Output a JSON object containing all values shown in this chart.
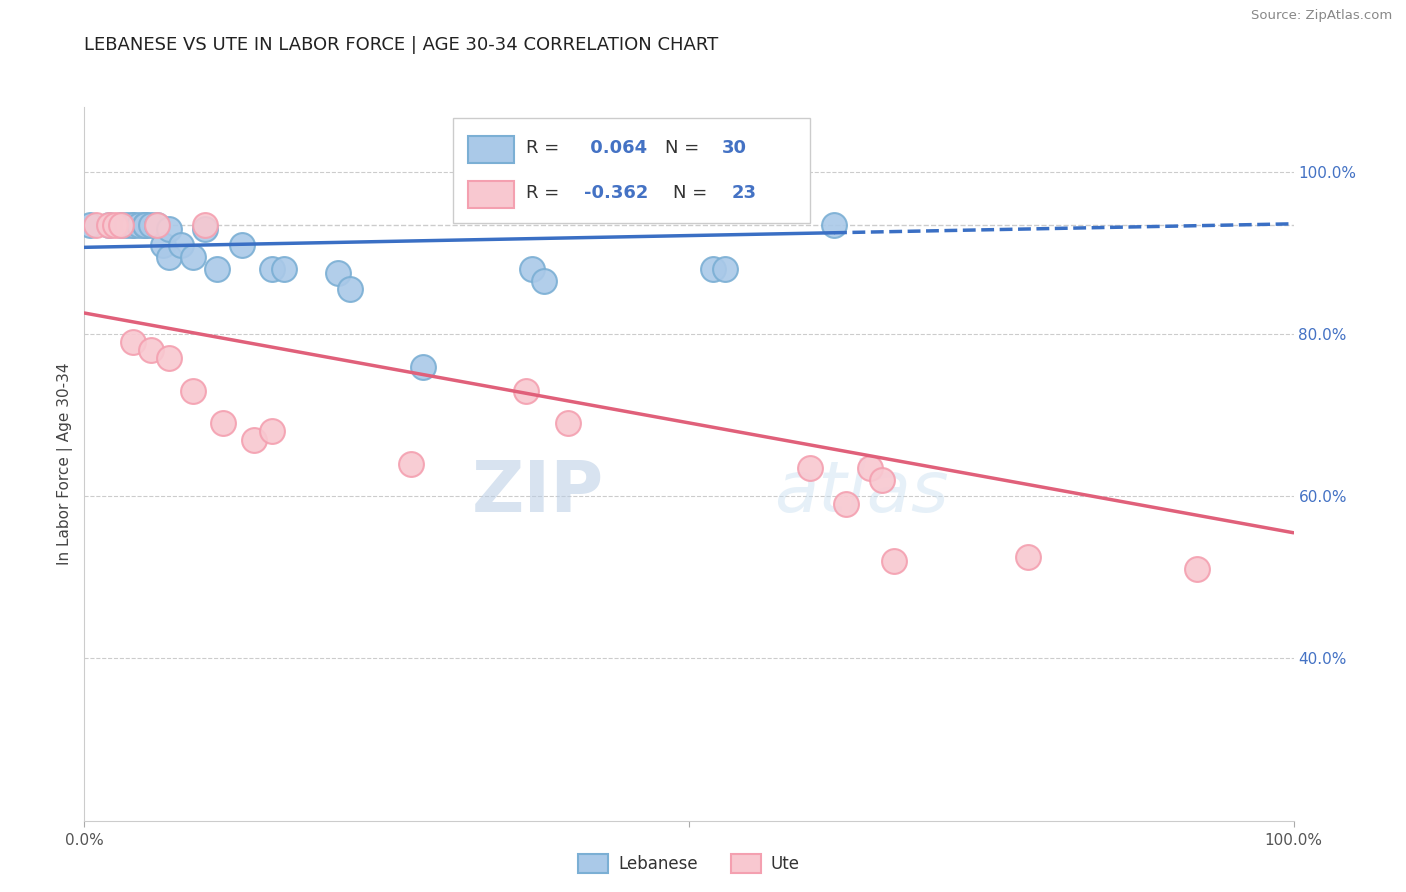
{
  "title": "LEBANESE VS UTE IN LABOR FORCE | AGE 30-34 CORRELATION CHART",
  "source_text": "Source: ZipAtlas.com",
  "ylabel": "In Labor Force | Age 30-34",
  "xlim": [
    0.0,
    1.0
  ],
  "ylim": [
    0.2,
    1.08
  ],
  "ytick_labels_right": [
    "100.0%",
    "80.0%",
    "60.0%",
    "40.0%"
  ],
  "ytick_positions_right": [
    1.0,
    0.8,
    0.6,
    0.4
  ],
  "grid_color": "#cccccc",
  "background_color": "#ffffff",
  "watermark_zip": "ZIP",
  "watermark_atlas": "atlas",
  "legend_r_lebanese": "0.064",
  "legend_n_lebanese": "30",
  "legend_r_ute": "-0.362",
  "legend_n_ute": "23",
  "lebanese_color": "#7bafd4",
  "lebanese_fill": "#aac9e8",
  "ute_color": "#f4a0b0",
  "ute_fill": "#f8c8d0",
  "trendline_lebanese_color": "#3a6fc4",
  "trendline_ute_color": "#e0607a",
  "lebanese_x": [
    0.005,
    0.02,
    0.03,
    0.035,
    0.04,
    0.04,
    0.045,
    0.05,
    0.05,
    0.05,
    0.055,
    0.06,
    0.065,
    0.07,
    0.07,
    0.08,
    0.09,
    0.1,
    0.11,
    0.13,
    0.155,
    0.165,
    0.21,
    0.22,
    0.28,
    0.37,
    0.38,
    0.52,
    0.53,
    0.62
  ],
  "lebanese_y": [
    0.935,
    0.935,
    0.935,
    0.935,
    0.935,
    0.935,
    0.935,
    0.935,
    0.935,
    0.935,
    0.935,
    0.935,
    0.91,
    0.93,
    0.895,
    0.91,
    0.895,
    0.93,
    0.88,
    0.91,
    0.88,
    0.88,
    0.875,
    0.855,
    0.76,
    0.88,
    0.865,
    0.88,
    0.88,
    0.935
  ],
  "ute_x": [
    0.01,
    0.02,
    0.025,
    0.03,
    0.04,
    0.055,
    0.06,
    0.07,
    0.09,
    0.1,
    0.115,
    0.14,
    0.155,
    0.27,
    0.365,
    0.4,
    0.6,
    0.63,
    0.65,
    0.66,
    0.67,
    0.78,
    0.92
  ],
  "ute_y": [
    0.935,
    0.935,
    0.935,
    0.935,
    0.79,
    0.78,
    0.935,
    0.77,
    0.73,
    0.935,
    0.69,
    0.67,
    0.68,
    0.64,
    0.73,
    0.69,
    0.635,
    0.59,
    0.635,
    0.62,
    0.52,
    0.525,
    0.51
  ],
  "trendline_leb_x0": 0.0,
  "trendline_leb_x1": 1.0,
  "trendline_leb_y0": 0.907,
  "trendline_leb_y1": 0.936,
  "trendline_leb_split": 0.62,
  "trendline_ute_x0": 0.0,
  "trendline_ute_x1": 1.0,
  "trendline_ute_y0": 0.826,
  "trendline_ute_y1": 0.555,
  "hline_positions": [
    1.0,
    0.8,
    0.6,
    0.4
  ],
  "dashed_line_y": 0.935
}
